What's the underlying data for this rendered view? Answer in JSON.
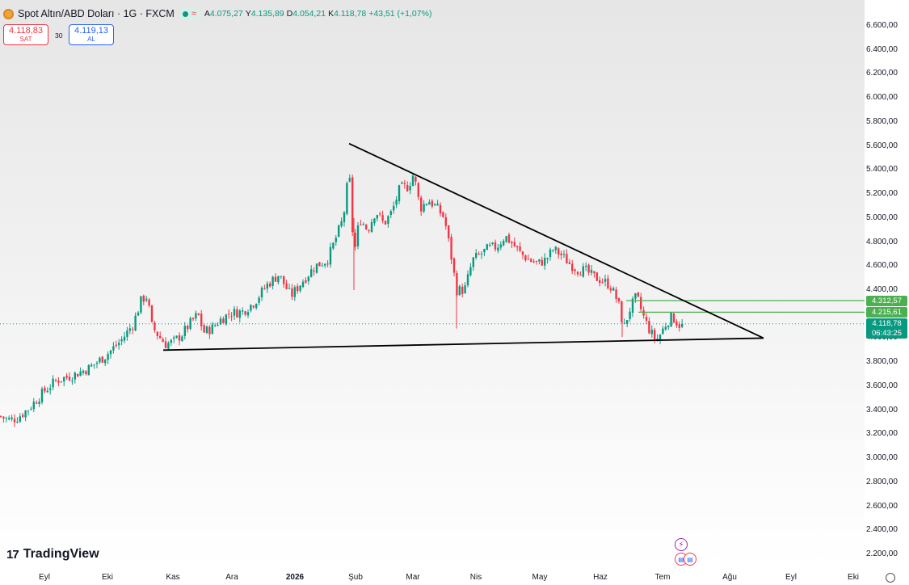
{
  "header": {
    "title": "Spot Altın/ABD Doları · 1G · FXCM",
    "market_status_icon": "dot-icon",
    "wave_icon": "wave-icon",
    "ohlc": [
      {
        "label": "A",
        "value": "4.075,27"
      },
      {
        "label": "Y",
        "value": "4.135,89"
      },
      {
        "label": "D",
        "value": "4.054,21"
      },
      {
        "label": "K",
        "value": "4.118,78"
      }
    ],
    "change": "+43,51 (+1,07%)"
  },
  "trade": {
    "sell_price": "4.118,83",
    "sell_label": "SAT",
    "spread": "30",
    "buy_price": "4.119,13",
    "buy_label": "AL"
  },
  "price_tags": {
    "level_1": "4.312,57",
    "level_2": "4.215,61",
    "last_price": "4.118,78",
    "countdown": "06:43:25"
  },
  "branding": "TradingView",
  "colors": {
    "up": "#089981",
    "down": "#f23645",
    "level_line": "#4caf50",
    "trendline": "#000000"
  },
  "chart_data": {
    "type": "candlestick",
    "symbol": "Spot Altın/ABD Doları · 1G · FXCM",
    "y_ticks": [
      "6.600,00",
      "6.400,00",
      "6.200,00",
      "6.000,00",
      "5.800,00",
      "5.600,00",
      "5.400,00",
      "5.200,00",
      "5.000,00",
      "4.800,00",
      "4.600,00",
      "4.400,00",
      "4.200,00",
      "4.000,00",
      "3.800,00",
      "3.600,00",
      "3.400,00",
      "3.200,00",
      "3.000,00",
      "2.800,00",
      "2.600,00",
      "2.400,00",
      "2.200,00"
    ],
    "ylim": [
      2150,
      6650
    ],
    "x_ticks": [
      {
        "label": "Eyl",
        "index": 0
      },
      {
        "label": "Eki",
        "index": 1
      },
      {
        "label": "Kas",
        "index": 2
      },
      {
        "label": "Ara",
        "index": 3
      },
      {
        "label": "2026",
        "index": 4,
        "bold": true
      },
      {
        "label": "Şub",
        "index": 5
      },
      {
        "label": "Mar",
        "index": 6
      },
      {
        "label": "Nis",
        "index": 7
      },
      {
        "label": "May",
        "index": 8
      },
      {
        "label": "Haz",
        "index": 9
      },
      {
        "label": "Tem",
        "index": 10
      },
      {
        "label": "Ağu",
        "index": 11
      },
      {
        "label": "Eyl",
        "index": 12
      },
      {
        "label": "Eki",
        "index": 13
      }
    ],
    "price_path": [
      [
        0,
        3350
      ],
      [
        10,
        3320
      ],
      [
        20,
        3330
      ],
      [
        35,
        3410
      ],
      [
        55,
        3560
      ],
      [
        70,
        3650
      ],
      [
        90,
        3690
      ],
      [
        110,
        3750
      ],
      [
        130,
        3850
      ],
      [
        150,
        3980
      ],
      [
        165,
        4120
      ],
      [
        175,
        4320
      ],
      [
        182,
        4350
      ],
      [
        188,
        4100
      ],
      [
        196,
        4020
      ],
      [
        205,
        3950
      ],
      [
        215,
        3970
      ],
      [
        225,
        4030
      ],
      [
        235,
        4120
      ],
      [
        245,
        4200
      ],
      [
        252,
        4050
      ],
      [
        262,
        4080
      ],
      [
        272,
        4150
      ],
      [
        285,
        4210
      ],
      [
        300,
        4220
      ],
      [
        315,
        4300
      ],
      [
        330,
        4440
      ],
      [
        345,
        4530
      ],
      [
        360,
        4350
      ],
      [
        375,
        4480
      ],
      [
        390,
        4600
      ],
      [
        405,
        4650
      ],
      [
        415,
        4820
      ],
      [
        425,
        5000
      ],
      [
        432,
        5400
      ],
      [
        438,
        4680
      ],
      [
        445,
        5000
      ],
      [
        455,
        4900
      ],
      [
        465,
        5060
      ],
      [
        475,
        4950
      ],
      [
        485,
        5050
      ],
      [
        495,
        5250
      ],
      [
        505,
        5260
      ],
      [
        512,
        5370
      ],
      [
        520,
        5080
      ],
      [
        530,
        5150
      ],
      [
        540,
        5090
      ],
      [
        550,
        5000
      ],
      [
        558,
        4700
      ],
      [
        565,
        4400
      ],
      [
        575,
        4400
      ],
      [
        585,
        4650
      ],
      [
        595,
        4700
      ],
      [
        605,
        4750
      ],
      [
        615,
        4760
      ],
      [
        625,
        4850
      ],
      [
        635,
        4780
      ],
      [
        645,
        4700
      ],
      [
        655,
        4650
      ],
      [
        665,
        4620
      ],
      [
        675,
        4650
      ],
      [
        685,
        4740
      ],
      [
        695,
        4690
      ],
      [
        705,
        4620
      ],
      [
        715,
        4570
      ],
      [
        725,
        4560
      ],
      [
        735,
        4510
      ],
      [
        745,
        4480
      ],
      [
        755,
        4440
      ],
      [
        765,
        4300
      ],
      [
        772,
        4080
      ],
      [
        780,
        4250
      ],
      [
        788,
        4350
      ],
      [
        795,
        4200
      ],
      [
        805,
        4050
      ],
      [
        812,
        3980
      ],
      [
        818,
        4040
      ],
      [
        825,
        4130
      ],
      [
        832,
        4180
      ],
      [
        840,
        4110
      ],
      [
        845,
        4120
      ]
    ],
    "last_price": 4118.78,
    "trendlines": [
      {
        "name": "upper",
        "from": [
          432,
          5620
        ],
        "to": [
          945,
          4000
        ]
      },
      {
        "name": "lower",
        "from": [
          202,
          3900
        ],
        "to": [
          945,
          4000
        ]
      }
    ],
    "levels": [
      {
        "value": 4312.57,
        "label": "4.312,57",
        "from_x": 775
      },
      {
        "value": 4215.61,
        "label": "4.215,61",
        "from_x": 790
      }
    ],
    "grid": false,
    "legend": "none"
  }
}
